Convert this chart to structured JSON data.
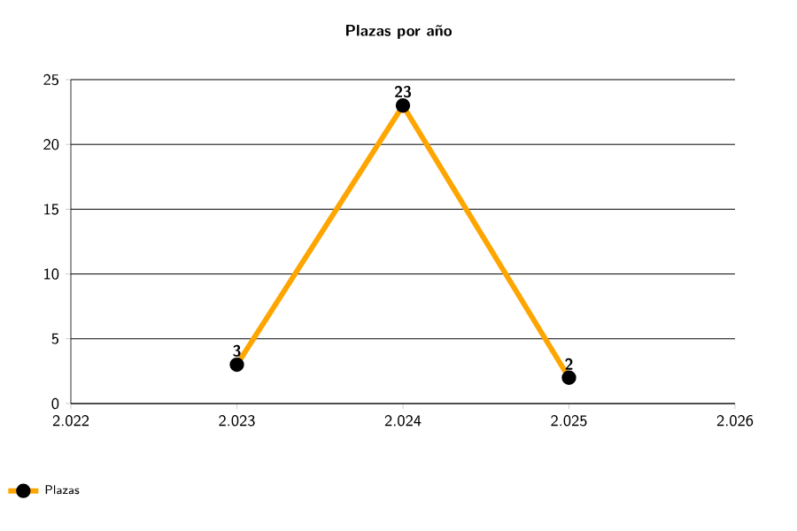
{
  "chart_data": {
    "type": "line",
    "title": "Plazas por año",
    "x": [
      2023,
      2024,
      2025
    ],
    "series": [
      {
        "name": "Plazas",
        "color": "#ffa500",
        "values": [
          3,
          23,
          2
        ]
      }
    ],
    "xlim": [
      2022,
      2026
    ],
    "xticks": [
      {
        "value": 2022,
        "label": "2.022"
      },
      {
        "value": 2023,
        "label": "2.023"
      },
      {
        "value": 2024,
        "label": "2.024"
      },
      {
        "value": 2025,
        "label": "2.025"
      },
      {
        "value": 2026,
        "label": "2.026"
      }
    ],
    "ylim": [
      0,
      25
    ],
    "yticks": [
      0,
      5,
      10,
      15,
      20,
      25
    ],
    "grid": "y",
    "legend": "bottom left",
    "marker": "circle",
    "line_style": "solid",
    "data_labels": true
  }
}
